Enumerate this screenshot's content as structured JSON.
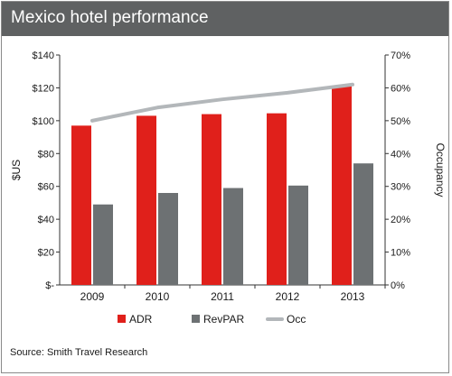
{
  "colors": {
    "title_bar": "#5f6162",
    "adr": "#e0201b",
    "revpar": "#6d7173",
    "occ": "#b3b7ba",
    "axis": "#333333"
  },
  "source_text": "Source: Smith Travel Research",
  "chart_data": {
    "type": "bar",
    "title": "Mexico hotel performance",
    "categories": [
      "2009",
      "2010",
      "2011",
      "2012",
      "2013"
    ],
    "series": [
      {
        "name": "ADR",
        "type": "bar",
        "axis": "left",
        "values": [
          97,
          103,
          104,
          104.5,
          121
        ]
      },
      {
        "name": "RevPAR",
        "type": "bar",
        "axis": "left",
        "values": [
          49,
          56,
          59,
          60.5,
          74
        ]
      },
      {
        "name": "Occ",
        "type": "line",
        "axis": "right",
        "values": [
          50,
          54,
          56.5,
          58.5,
          61
        ]
      }
    ],
    "ylabel": "$US",
    "ylabel_right": "Occupancy",
    "ylim": [
      0,
      140
    ],
    "ylim_right": [
      0,
      70
    ],
    "yticks": [
      "$-",
      "$20",
      "$40",
      "$60",
      "$80",
      "$100",
      "$120",
      "$140"
    ],
    "yticks_right": [
      "0%",
      "10%",
      "20%",
      "30%",
      "40%",
      "50%",
      "60%",
      "70%"
    ],
    "legend": [
      "ADR",
      "RevPAR",
      "Occ"
    ],
    "legend_position": "bottom",
    "grid": false
  }
}
